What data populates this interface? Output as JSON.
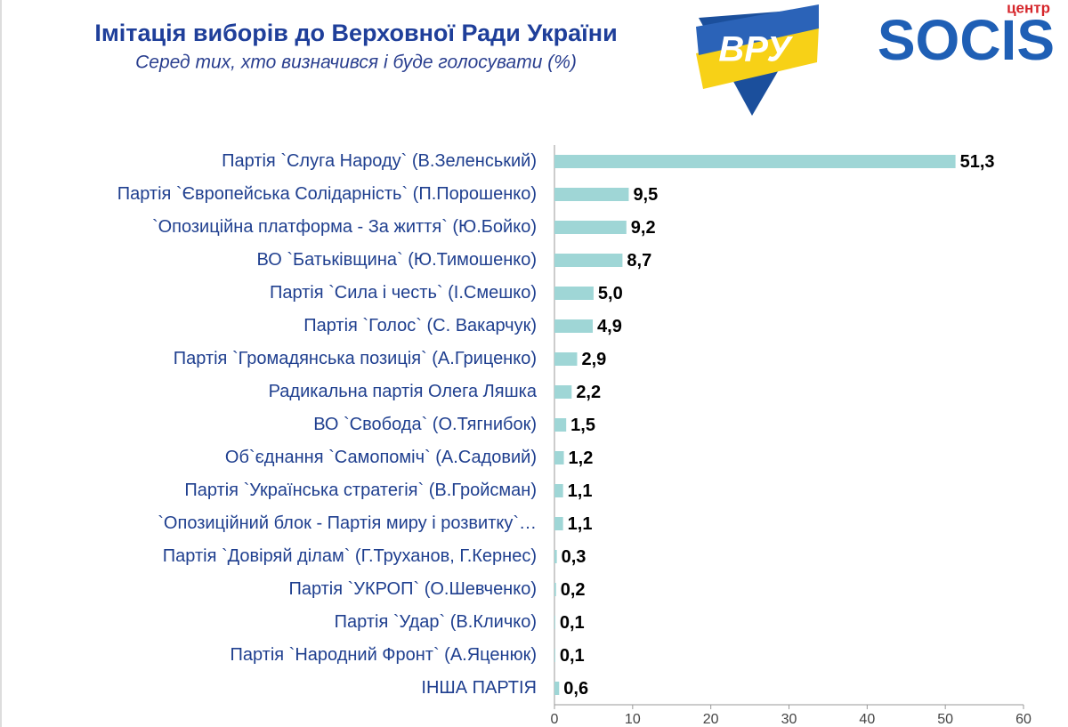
{
  "chart_data": {
    "type": "bar",
    "orientation": "horizontal",
    "title": "Імітація виборів до Верховної Ради України",
    "subtitle": "Серед тих, хто визначився і буде голосувати (%)",
    "logo_text": "ВРУ",
    "brand_small": "центр",
    "brand": "SOCIS",
    "categories": [
      "Партія `Слуга Народу` (В.Зеленський)",
      "Партія `Європейська Солідарність` (П.Порошенко)",
      "`Опозиційна платформа - За життя` (Ю.Бойко)",
      "ВО `Батьківщина` (Ю.Тимошенко)",
      "Партія `Сила і честь` (І.Смешко)",
      "Партія `Голос` (С. Вакарчук)",
      "Партія `Громадянська позиція` (А.Гриценко)",
      "Радикальна партія Олега Ляшка",
      "ВО `Свобода` (О.Тягнибок)",
      "Об`єднання `Самопоміч` (А.Садовий)",
      "Партія `Українська стратегія` (В.Гройсман)",
      "`Опозиційний блок - Партія миру і розвитку`…",
      "Партія `Довіряй ділам` (Г.Труханов, Г.Кернес)",
      "Партія `УКРОП` (О.Шевченко)",
      "Партія `Удар` (В.Кличко)",
      "Партія `Народний Фронт` (А.Яценюк)",
      "ІНША ПАРТІЯ"
    ],
    "values": [
      51.3,
      9.5,
      9.2,
      8.7,
      5.0,
      4.9,
      2.9,
      2.2,
      1.5,
      1.2,
      1.1,
      1.1,
      0.3,
      0.2,
      0.1,
      0.1,
      0.6
    ],
    "value_labels": [
      "51,3",
      "9,5",
      "9,2",
      "8,7",
      "5,0",
      "4,9",
      "2,9",
      "2,2",
      "1,5",
      "1,2",
      "1,1",
      "1,1",
      "0,3",
      "0,2",
      "0,1",
      "0,1",
      "0,6"
    ],
    "color": "#9fd6d6",
    "xlim": [
      0,
      60
    ],
    "xticks": [
      0,
      10,
      20,
      30,
      40,
      50,
      60
    ],
    "grid": false
  }
}
